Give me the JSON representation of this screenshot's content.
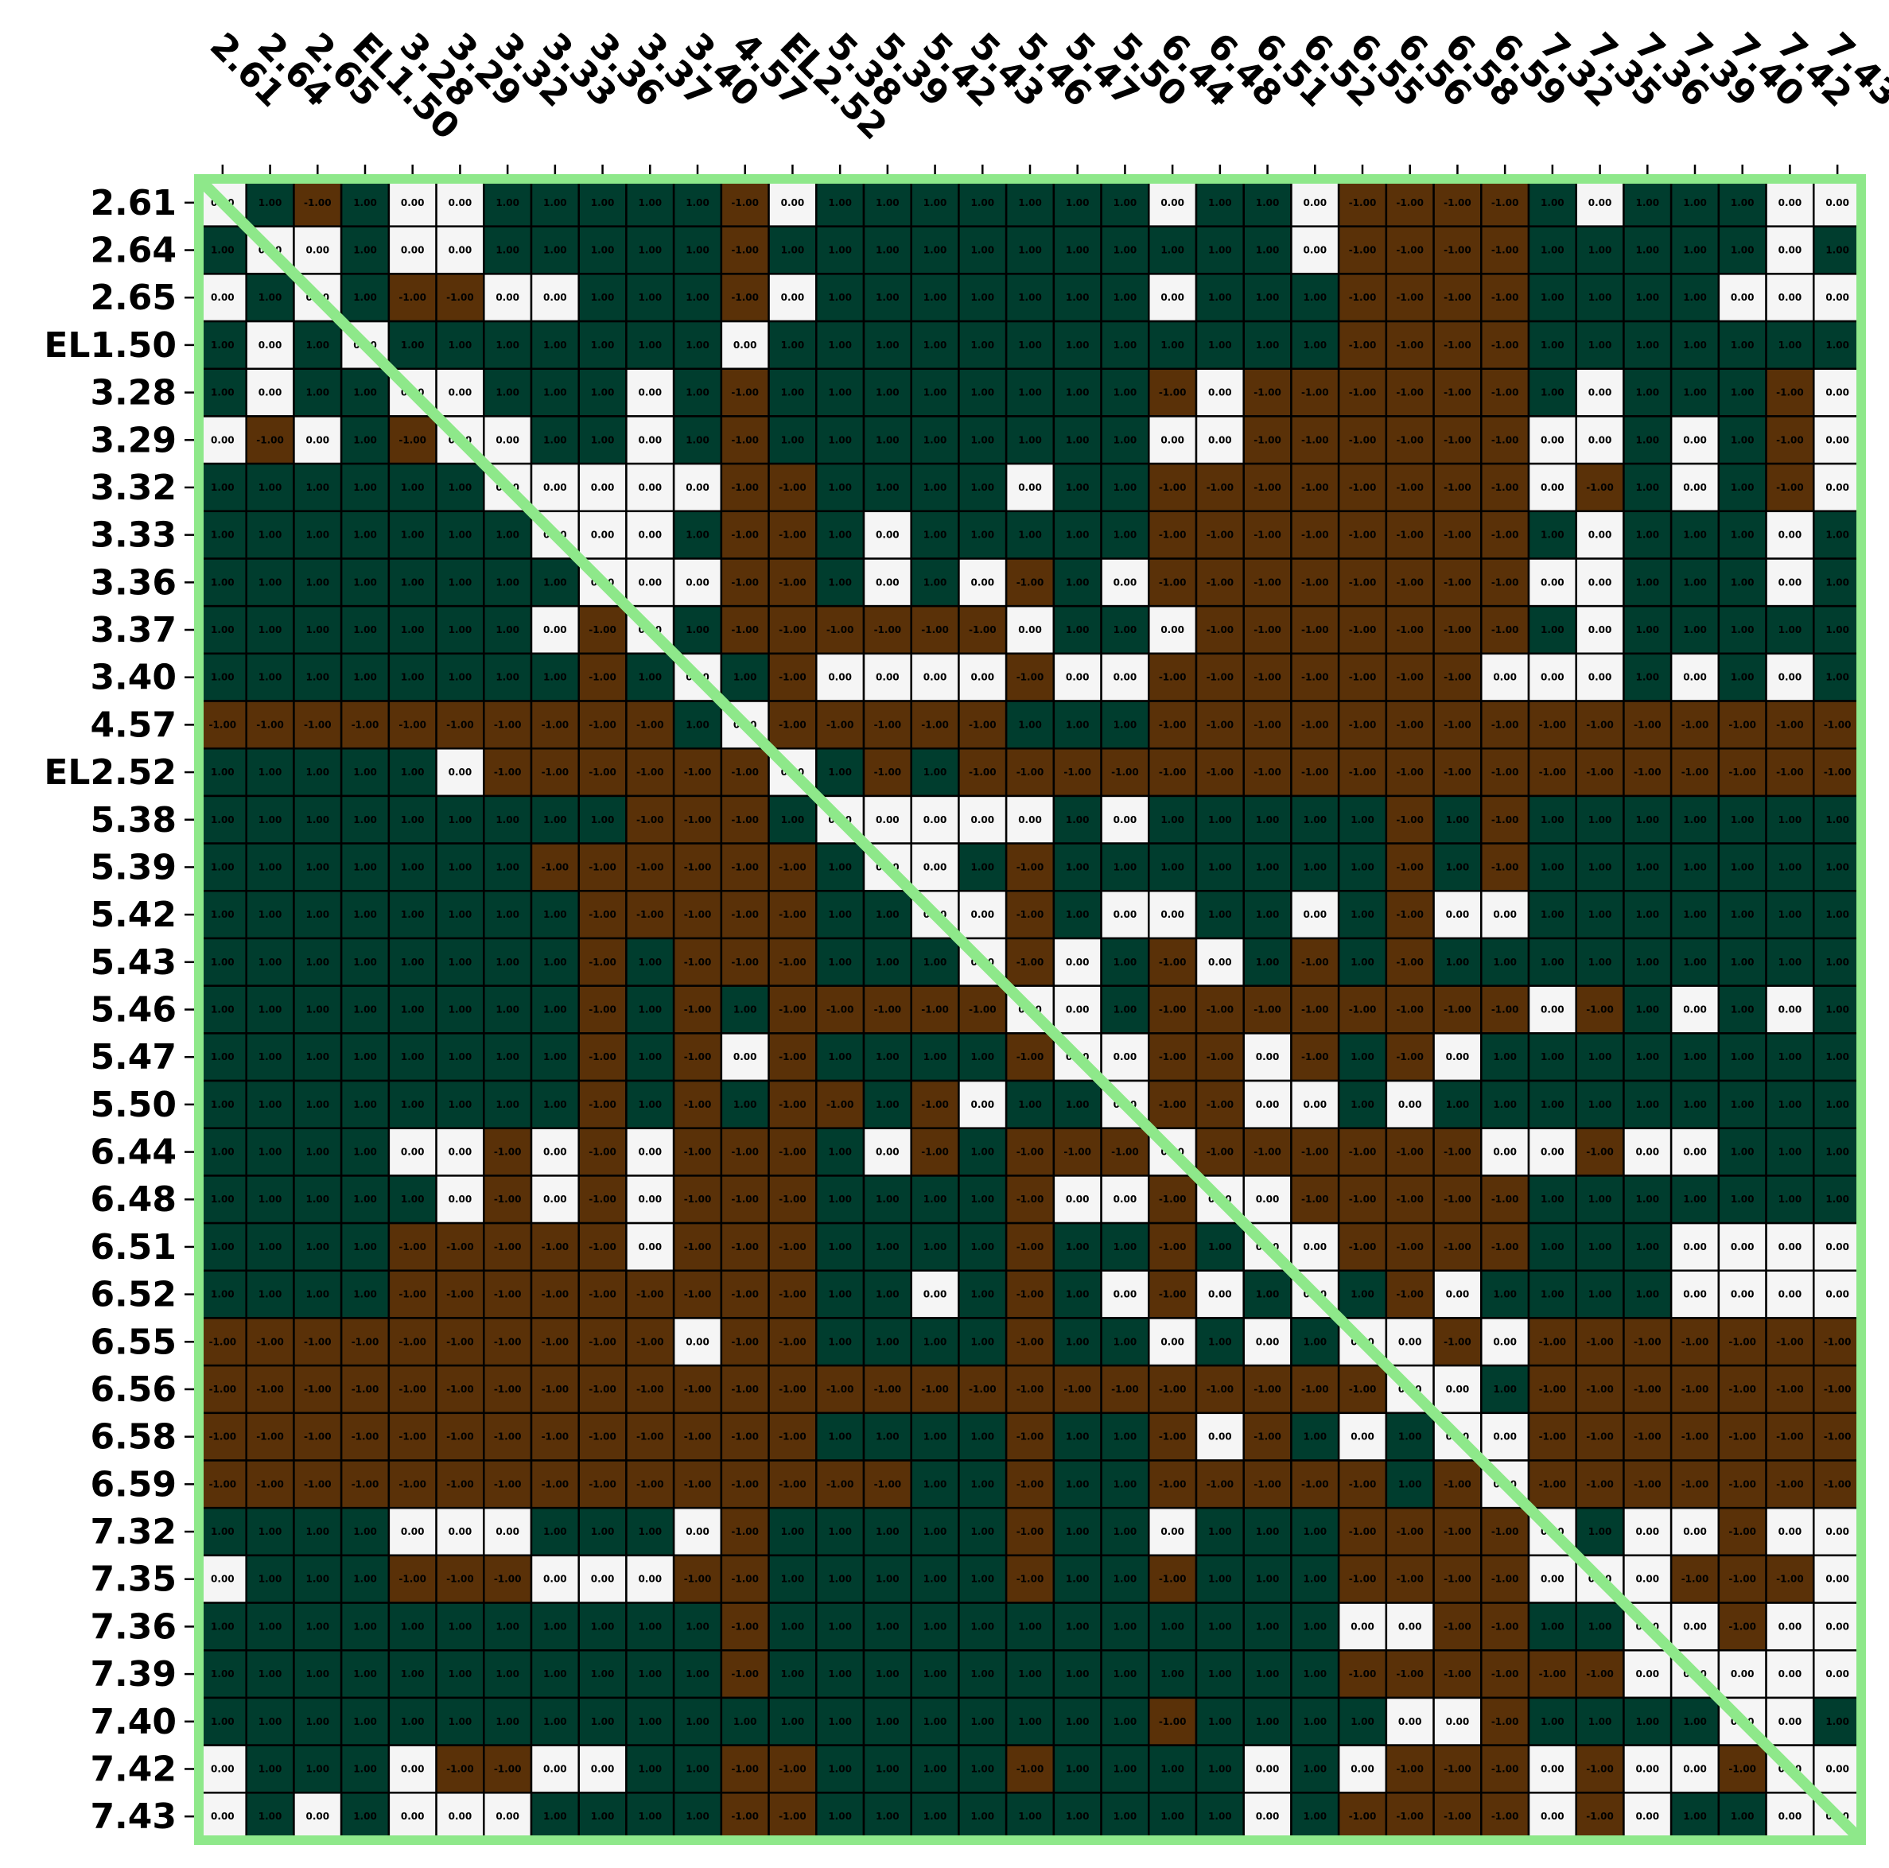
{
  "chart_data": {
    "type": "heatmap",
    "labels": [
      "2.61",
      "2.64",
      "2.65",
      "EL1.50",
      "3.28",
      "3.29",
      "3.32",
      "3.33",
      "3.36",
      "3.37",
      "3.40",
      "4.57",
      "EL2.52",
      "5.38",
      "5.39",
      "5.42",
      "5.43",
      "5.46",
      "5.47",
      "5.50",
      "6.44",
      "6.48",
      "6.51",
      "6.52",
      "6.55",
      "6.56",
      "6.58",
      "6.59",
      "7.32",
      "7.35",
      "7.36",
      "7.39",
      "7.40",
      "7.42",
      "7.43"
    ],
    "colors": {
      "1": "#003d2e",
      "0": "#f5f5f5",
      "-1": "#5a3108",
      "diagonal": "#8ee88a",
      "frame": "#8ee88a",
      "grid": "#000000"
    },
    "matrix": [
      [
        0,
        1,
        -1,
        1,
        0,
        0,
        1,
        1,
        1,
        1,
        1,
        -1,
        0,
        1,
        1,
        1,
        1,
        1,
        1,
        1,
        0,
        1,
        1,
        0,
        -1,
        -1,
        -1,
        -1,
        1,
        0,
        1,
        1,
        1,
        0,
        0
      ],
      [
        1,
        0,
        0,
        1,
        0,
        0,
        1,
        1,
        1,
        1,
        1,
        -1,
        1,
        1,
        1,
        1,
        1,
        1,
        1,
        1,
        1,
        1,
        1,
        0,
        -1,
        -1,
        -1,
        -1,
        1,
        1,
        1,
        1,
        1,
        0,
        1
      ],
      [
        0,
        1,
        0,
        1,
        -1,
        -1,
        0,
        0,
        1,
        1,
        1,
        -1,
        0,
        1,
        1,
        1,
        1,
        1,
        1,
        1,
        0,
        1,
        1,
        1,
        -1,
        -1,
        -1,
        -1,
        1,
        1,
        1,
        1,
        0,
        0,
        0
      ],
      [
        1,
        0,
        1,
        0,
        1,
        1,
        1,
        1,
        1,
        1,
        1,
        0,
        1,
        1,
        1,
        1,
        1,
        1,
        1,
        1,
        1,
        1,
        1,
        1,
        -1,
        -1,
        -1,
        -1,
        1,
        1,
        1,
        1,
        1,
        1,
        1
      ],
      [
        1,
        0,
        1,
        1,
        0,
        0,
        1,
        1,
        1,
        0,
        1,
        -1,
        1,
        1,
        1,
        1,
        1,
        1,
        1,
        1,
        -1,
        0,
        -1,
        -1,
        -1,
        -1,
        -1,
        -1,
        1,
        0,
        1,
        1,
        1,
        -1,
        0
      ],
      [
        0,
        -1,
        0,
        1,
        -1,
        0,
        0,
        1,
        1,
        0,
        1,
        -1,
        1,
        1,
        1,
        1,
        1,
        1,
        1,
        1,
        0,
        0,
        -1,
        -1,
        -1,
        -1,
        -1,
        -1,
        0,
        0,
        1,
        0,
        1,
        -1,
        0
      ],
      [
        1,
        1,
        1,
        1,
        1,
        1,
        0,
        0,
        0,
        0,
        0,
        -1,
        -1,
        1,
        1,
        1,
        1,
        0,
        1,
        1,
        -1,
        -1,
        -1,
        -1,
        -1,
        -1,
        -1,
        -1,
        0,
        -1,
        1,
        0,
        1,
        -1,
        0
      ],
      [
        1,
        1,
        1,
        1,
        1,
        1,
        1,
        0,
        0,
        0,
        1,
        -1,
        -1,
        1,
        0,
        1,
        1,
        1,
        1,
        1,
        -1,
        -1,
        -1,
        -1,
        -1,
        -1,
        -1,
        -1,
        1,
        0,
        1,
        1,
        1,
        0,
        1
      ],
      [
        1,
        1,
        1,
        1,
        1,
        1,
        1,
        1,
        0,
        0,
        0,
        -1,
        -1,
        1,
        0,
        1,
        0,
        -1,
        1,
        0,
        -1,
        -1,
        -1,
        -1,
        -1,
        -1,
        -1,
        -1,
        0,
        0,
        1,
        1,
        1,
        0,
        1
      ],
      [
        1,
        1,
        1,
        1,
        1,
        1,
        1,
        0,
        -1,
        0,
        1,
        -1,
        -1,
        -1,
        -1,
        -1,
        -1,
        0,
        1,
        1,
        0,
        -1,
        -1,
        -1,
        -1,
        -1,
        -1,
        -1,
        1,
        0,
        1,
        1,
        1,
        1,
        1
      ],
      [
        1,
        1,
        1,
        1,
        1,
        1,
        1,
        1,
        -1,
        1,
        0,
        1,
        -1,
        0,
        0,
        0,
        0,
        -1,
        0,
        0,
        -1,
        -1,
        -1,
        -1,
        -1,
        -1,
        -1,
        0,
        0,
        0,
        1,
        0,
        1,
        0,
        1
      ],
      [
        -1,
        -1,
        -1,
        -1,
        -1,
        -1,
        -1,
        -1,
        -1,
        -1,
        1,
        0,
        -1,
        -1,
        -1,
        -1,
        -1,
        1,
        1,
        1,
        -1,
        -1,
        -1,
        -1,
        -1,
        -1,
        -1,
        -1,
        -1,
        -1,
        -1,
        -1,
        -1,
        -1,
        -1
      ],
      [
        1,
        1,
        1,
        1,
        1,
        0,
        -1,
        -1,
        -1,
        -1,
        -1,
        -1,
        0,
        1,
        -1,
        1,
        -1,
        -1,
        -1,
        -1,
        -1,
        -1,
        -1,
        -1,
        -1,
        -1,
        -1,
        -1,
        -1,
        -1,
        -1,
        -1,
        -1,
        -1,
        -1
      ],
      [
        1,
        1,
        1,
        1,
        1,
        1,
        1,
        1,
        1,
        -1,
        -1,
        -1,
        1,
        0,
        0,
        0,
        0,
        0,
        1,
        0,
        1,
        1,
        1,
        1,
        1,
        -1,
        1,
        -1,
        1,
        1,
        1,
        1,
        1,
        1,
        1
      ],
      [
        1,
        1,
        1,
        1,
        1,
        1,
        1,
        -1,
        -1,
        -1,
        -1,
        -1,
        -1,
        1,
        0,
        0,
        1,
        -1,
        1,
        1,
        1,
        1,
        1,
        1,
        1,
        -1,
        1,
        -1,
        1,
        1,
        1,
        1,
        1,
        1,
        1
      ],
      [
        1,
        1,
        1,
        1,
        1,
        1,
        1,
        1,
        -1,
        -1,
        -1,
        -1,
        -1,
        1,
        1,
        0,
        0,
        -1,
        1,
        0,
        0,
        1,
        1,
        0,
        1,
        -1,
        0,
        0,
        1,
        1,
        1,
        1,
        1,
        1,
        1
      ],
      [
        1,
        1,
        1,
        1,
        1,
        1,
        1,
        1,
        -1,
        1,
        -1,
        -1,
        -1,
        1,
        1,
        1,
        0,
        -1,
        0,
        1,
        -1,
        0,
        1,
        -1,
        1,
        -1,
        1,
        1,
        1,
        1,
        1,
        1,
        1,
        1,
        1
      ],
      [
        1,
        1,
        1,
        1,
        1,
        1,
        1,
        1,
        -1,
        1,
        -1,
        1,
        -1,
        -1,
        -1,
        -1,
        -1,
        0,
        0,
        1,
        -1,
        -1,
        -1,
        -1,
        -1,
        -1,
        -1,
        -1,
        0,
        -1,
        1,
        0,
        1,
        0,
        1
      ],
      [
        1,
        1,
        1,
        1,
        1,
        1,
        1,
        1,
        -1,
        1,
        -1,
        0,
        -1,
        1,
        1,
        1,
        1,
        -1,
        0,
        0,
        -1,
        -1,
        0,
        -1,
        1,
        -1,
        0,
        1,
        1,
        1,
        1,
        1,
        1,
        1,
        1
      ],
      [
        1,
        1,
        1,
        1,
        1,
        1,
        1,
        1,
        -1,
        1,
        -1,
        1,
        -1,
        -1,
        1,
        -1,
        0,
        1,
        1,
        0,
        -1,
        -1,
        0,
        0,
        1,
        0,
        1,
        1,
        1,
        1,
        1,
        1,
        1,
        1,
        1
      ],
      [
        1,
        1,
        1,
        1,
        0,
        0,
        -1,
        0,
        -1,
        0,
        -1,
        -1,
        -1,
        1,
        0,
        -1,
        1,
        -1,
        -1,
        -1,
        0,
        -1,
        -1,
        -1,
        -1,
        -1,
        -1,
        0,
        0,
        -1,
        0,
        0,
        1,
        1,
        1
      ],
      [
        1,
        1,
        1,
        1,
        1,
        0,
        -1,
        0,
        -1,
        0,
        -1,
        -1,
        -1,
        1,
        1,
        1,
        1,
        -1,
        0,
        0,
        -1,
        0,
        0,
        -1,
        -1,
        -1,
        -1,
        -1,
        1,
        1,
        1,
        1,
        1,
        1,
        1
      ],
      [
        1,
        1,
        1,
        1,
        -1,
        -1,
        -1,
        -1,
        -1,
        0,
        -1,
        -1,
        -1,
        1,
        1,
        1,
        1,
        -1,
        1,
        1,
        -1,
        1,
        0,
        0,
        -1,
        -1,
        -1,
        -1,
        1,
        1,
        1,
        0,
        0,
        0,
        0
      ],
      [
        1,
        1,
        1,
        1,
        -1,
        -1,
        -1,
        -1,
        -1,
        -1,
        -1,
        -1,
        -1,
        1,
        1,
        0,
        1,
        -1,
        1,
        0,
        -1,
        0,
        1,
        0,
        1,
        -1,
        0,
        1,
        1,
        1,
        1,
        0,
        0,
        0,
        0
      ],
      [
        -1,
        -1,
        -1,
        -1,
        -1,
        -1,
        -1,
        -1,
        -1,
        -1,
        0,
        -1,
        -1,
        1,
        1,
        1,
        1,
        -1,
        1,
        1,
        0,
        1,
        0,
        1,
        0,
        0,
        -1,
        0,
        -1,
        -1,
        -1,
        -1,
        -1,
        -1,
        -1
      ],
      [
        -1,
        -1,
        -1,
        -1,
        -1,
        -1,
        -1,
        -1,
        -1,
        -1,
        -1,
        -1,
        -1,
        -1,
        -1,
        -1,
        -1,
        -1,
        -1,
        -1,
        -1,
        -1,
        -1,
        -1,
        -1,
        0,
        0,
        1,
        -1,
        -1,
        -1,
        -1,
        -1,
        -1,
        -1
      ],
      [
        -1,
        -1,
        -1,
        -1,
        -1,
        -1,
        -1,
        -1,
        -1,
        -1,
        -1,
        -1,
        -1,
        1,
        1,
        1,
        1,
        -1,
        1,
        1,
        -1,
        0,
        -1,
        1,
        0,
        1,
        0,
        0,
        -1,
        -1,
        -1,
        -1,
        -1,
        -1,
        -1
      ],
      [
        -1,
        -1,
        -1,
        -1,
        -1,
        -1,
        -1,
        -1,
        -1,
        -1,
        -1,
        -1,
        -1,
        -1,
        -1,
        1,
        1,
        -1,
        1,
        1,
        -1,
        -1,
        -1,
        -1,
        -1,
        1,
        -1,
        0,
        -1,
        -1,
        -1,
        -1,
        -1,
        -1,
        -1
      ],
      [
        1,
        1,
        1,
        1,
        0,
        0,
        0,
        1,
        1,
        1,
        0,
        -1,
        1,
        1,
        1,
        1,
        1,
        -1,
        1,
        1,
        0,
        1,
        1,
        1,
        -1,
        -1,
        -1,
        -1,
        0,
        1,
        0,
        0,
        -1,
        0,
        0
      ],
      [
        0,
        1,
        1,
        1,
        -1,
        -1,
        -1,
        0,
        0,
        0,
        -1,
        -1,
        1,
        1,
        1,
        1,
        1,
        -1,
        1,
        1,
        -1,
        1,
        1,
        1,
        -1,
        -1,
        -1,
        -1,
        0,
        0,
        0,
        -1,
        -1,
        -1,
        0
      ],
      [
        1,
        1,
        1,
        1,
        1,
        1,
        1,
        1,
        1,
        1,
        1,
        -1,
        1,
        1,
        1,
        1,
        1,
        1,
        1,
        1,
        1,
        1,
        1,
        1,
        0,
        0,
        -1,
        -1,
        1,
        1,
        0,
        0,
        -1,
        0,
        0
      ],
      [
        1,
        1,
        1,
        1,
        1,
        1,
        1,
        1,
        1,
        1,
        1,
        -1,
        1,
        1,
        1,
        1,
        1,
        1,
        1,
        1,
        1,
        1,
        1,
        1,
        -1,
        -1,
        -1,
        -1,
        -1,
        -1,
        0,
        0,
        0,
        0,
        0
      ],
      [
        1,
        1,
        1,
        1,
        1,
        1,
        1,
        1,
        1,
        1,
        1,
        1,
        1,
        1,
        1,
        1,
        1,
        1,
        1,
        1,
        -1,
        1,
        1,
        1,
        1,
        0,
        0,
        -1,
        1,
        1,
        1,
        1,
        0,
        0,
        1
      ],
      [
        0,
        1,
        1,
        1,
        0,
        -1,
        -1,
        0,
        0,
        1,
        1,
        -1,
        -1,
        1,
        1,
        1,
        1,
        -1,
        1,
        1,
        1,
        1,
        0,
        1,
        0,
        -1,
        -1,
        -1,
        0,
        -1,
        0,
        0,
        -1,
        0,
        0
      ],
      [
        0,
        1,
        0,
        1,
        0,
        0,
        0,
        1,
        1,
        1,
        1,
        -1,
        -1,
        1,
        1,
        1,
        1,
        1,
        1,
        1,
        1,
        1,
        0,
        1,
        -1,
        -1,
        -1,
        -1,
        0,
        -1,
        0,
        1,
        1,
        0,
        0
      ]
    ]
  }
}
